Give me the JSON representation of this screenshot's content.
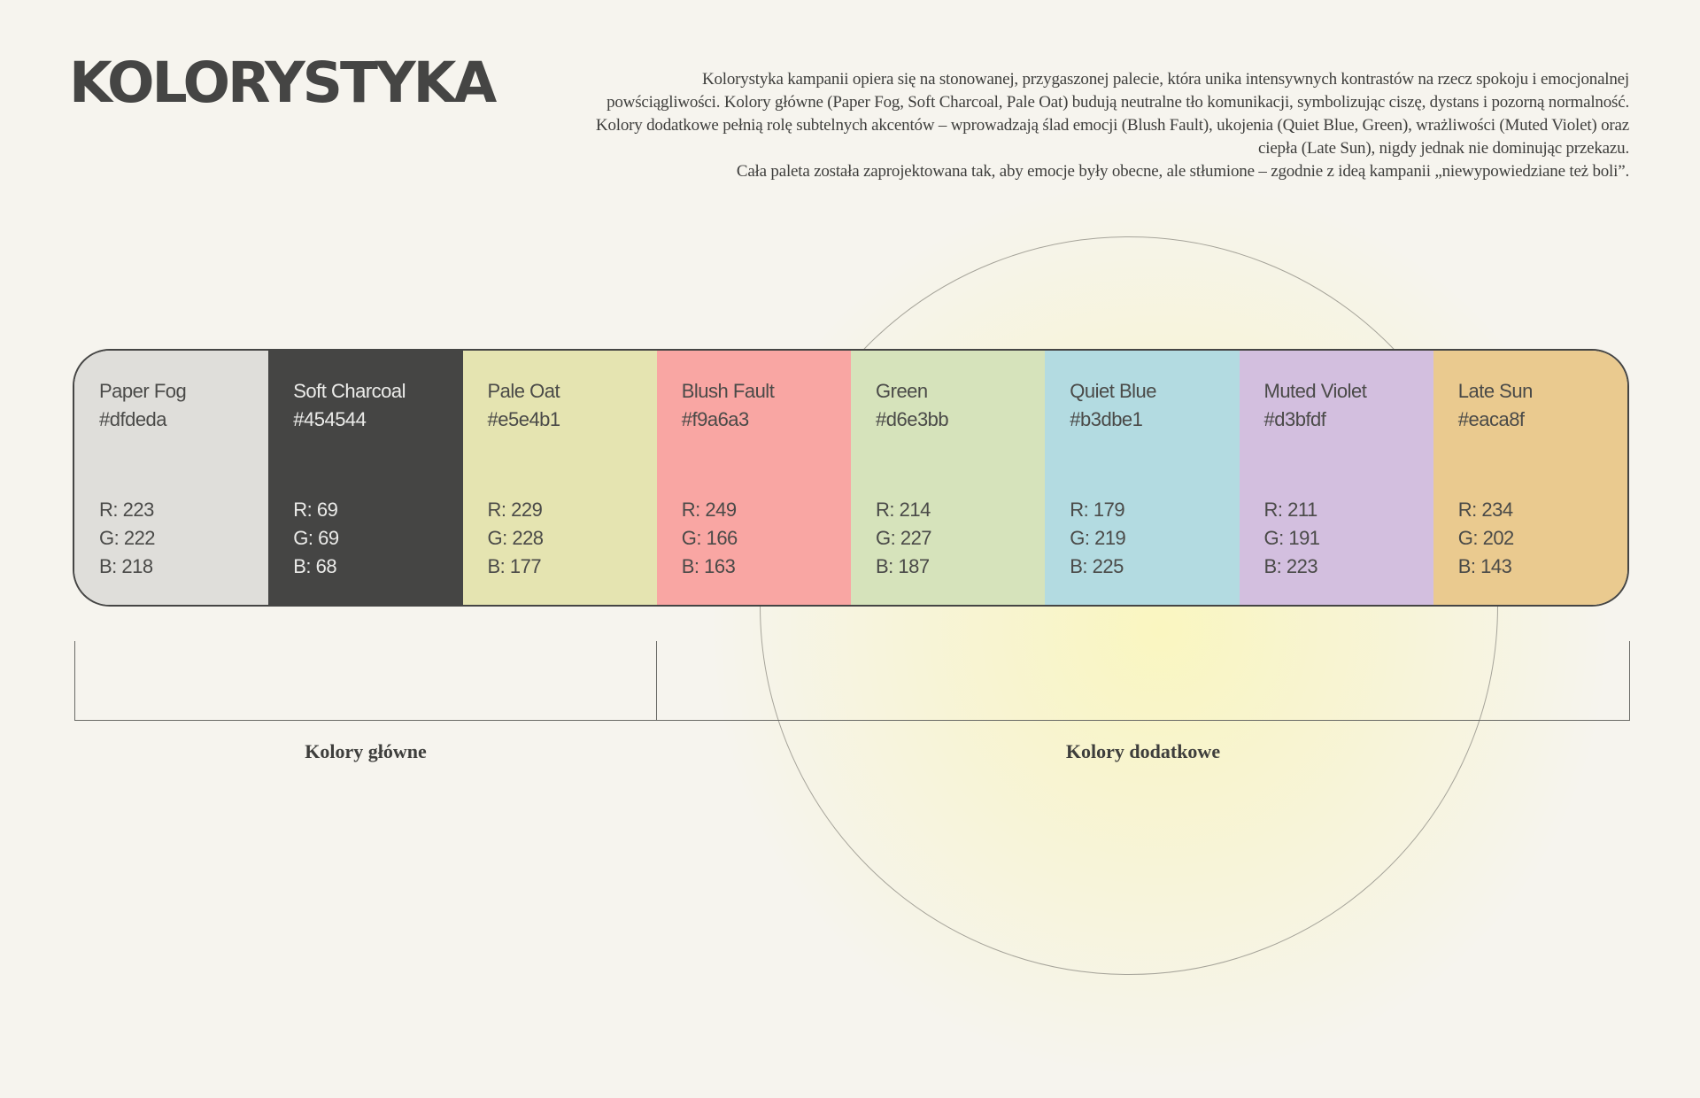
{
  "title": "KOLORYSTYKA",
  "intro": [
    "Kolorystyka kampanii opiera się na stonowanej, przygaszonej palecie, która unika intensywnych kontrastów na rzecz spokoju i emocjonalnej",
    "powściągliwości. Kolory główne (Paper Fog, Soft Charcoal, Pale Oat) budują neutralne tło komunikacji, symbolizując ciszę, dystans i pozorną normalność.",
    "Kolory dodatkowe pełnią rolę subtelnych akcentów – wprowadzają ślad emocji (Blush Fault), ukojenia (Quiet Blue, Green), wrażliwości (Muted Violet) oraz",
    "ciepła (Late Sun), nigdy jednak nie dominując przekazu.",
    "Cała paleta została zaprojektowana tak, aby emocje były obecne, ale stłumione – zgodnie z ideą kampanii „niewypowiedziane też boli”."
  ],
  "swatches": [
    {
      "name": "Paper Fog",
      "hex": "#dfdeda",
      "r": "R: 223",
      "g": "G: 222",
      "b": "B: 218",
      "color": "#dfdeda"
    },
    {
      "name": "Soft Charcoal",
      "hex": "#454544",
      "r": "R: 69",
      "g": "G: 69",
      "b": "B: 68",
      "color": "#454544"
    },
    {
      "name": "Pale Oat",
      "hex": "#e5e4b1",
      "r": "R: 229",
      "g": "G: 228",
      "b": "B: 177",
      "color": "#e5e4b1"
    },
    {
      "name": "Blush Fault",
      "hex": "#f9a6a3",
      "r": "R: 249",
      "g": "G: 166",
      "b": "B: 163",
      "color": "#f9a6a3"
    },
    {
      "name": "Green",
      "hex": "#d6e3bb",
      "r": "R: 214",
      "g": "G: 227",
      "b": "B: 187",
      "color": "#d6e3bb"
    },
    {
      "name": "Quiet Blue",
      "hex": "#b3dbe1",
      "r": "R: 179",
      "g": "G: 219",
      "b": "B: 225",
      "color": "#b3dbe1"
    },
    {
      "name": "Muted Violet",
      "hex": "#d3bfdf",
      "r": "R: 211",
      "g": "G: 191",
      "b": "B: 223",
      "color": "#d3bfdf"
    },
    {
      "name": "Late Sun",
      "hex": "#eaca8f",
      "r": "R: 234",
      "g": "G: 202",
      "b": "B: 143",
      "color": "#eaca8f"
    }
  ],
  "groups": {
    "main_label": "Kolory główne",
    "extra_label": "Kolory dodatkowe"
  }
}
